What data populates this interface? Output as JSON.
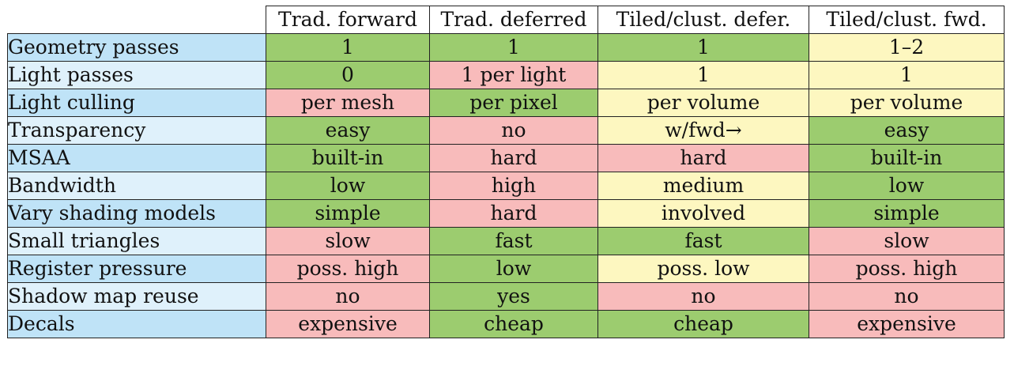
{
  "colors": {
    "good": "#9ccc6f",
    "bad": "#f8bbbb",
    "medium": "#fdf7c0",
    "label_dark": "#bfe3f7",
    "label_light": "#dff1fb"
  },
  "columns": [
    "Trad. forward",
    "Trad. deferred",
    "Tiled/clust. defer.",
    "Tiled/clust. fwd."
  ],
  "rows": [
    {
      "label": "Geometry passes",
      "cells": [
        {
          "text": "1",
          "rating": "good"
        },
        {
          "text": "1",
          "rating": "good"
        },
        {
          "text": "1",
          "rating": "good"
        },
        {
          "text": "1–2",
          "rating": "medium"
        }
      ]
    },
    {
      "label": "Light passes",
      "cells": [
        {
          "text": "0",
          "rating": "good"
        },
        {
          "text": "1 per light",
          "rating": "bad"
        },
        {
          "text": "1",
          "rating": "medium"
        },
        {
          "text": "1",
          "rating": "medium"
        }
      ]
    },
    {
      "label": "Light culling",
      "cells": [
        {
          "text": "per mesh",
          "rating": "bad"
        },
        {
          "text": "per pixel",
          "rating": "good"
        },
        {
          "text": "per volume",
          "rating": "medium"
        },
        {
          "text": "per volume",
          "rating": "medium"
        }
      ]
    },
    {
      "label": "Transparency",
      "cells": [
        {
          "text": "easy",
          "rating": "good"
        },
        {
          "text": "no",
          "rating": "bad"
        },
        {
          "text": "w/fwd→",
          "rating": "medium"
        },
        {
          "text": "easy",
          "rating": "good"
        }
      ]
    },
    {
      "label": "MSAA",
      "cells": [
        {
          "text": "built-in",
          "rating": "good"
        },
        {
          "text": "hard",
          "rating": "bad"
        },
        {
          "text": "hard",
          "rating": "bad"
        },
        {
          "text": "built-in",
          "rating": "good"
        }
      ]
    },
    {
      "label": "Bandwidth",
      "cells": [
        {
          "text": "low",
          "rating": "good"
        },
        {
          "text": "high",
          "rating": "bad"
        },
        {
          "text": "medium",
          "rating": "medium"
        },
        {
          "text": "low",
          "rating": "good"
        }
      ]
    },
    {
      "label": "Vary shading models",
      "cells": [
        {
          "text": "simple",
          "rating": "good"
        },
        {
          "text": "hard",
          "rating": "bad"
        },
        {
          "text": "involved",
          "rating": "medium"
        },
        {
          "text": "simple",
          "rating": "good"
        }
      ]
    },
    {
      "label": "Small triangles",
      "cells": [
        {
          "text": "slow",
          "rating": "bad"
        },
        {
          "text": "fast",
          "rating": "good"
        },
        {
          "text": "fast",
          "rating": "good"
        },
        {
          "text": "slow",
          "rating": "bad"
        }
      ]
    },
    {
      "label": "Register pressure",
      "cells": [
        {
          "text": "poss. high",
          "rating": "bad"
        },
        {
          "text": "low",
          "rating": "good"
        },
        {
          "text": "poss. low",
          "rating": "medium"
        },
        {
          "text": "poss. high",
          "rating": "bad"
        }
      ]
    },
    {
      "label": "Shadow map reuse",
      "cells": [
        {
          "text": "no",
          "rating": "bad"
        },
        {
          "text": "yes",
          "rating": "good"
        },
        {
          "text": "no",
          "rating": "bad"
        },
        {
          "text": "no",
          "rating": "bad"
        }
      ]
    },
    {
      "label": "Decals",
      "cells": [
        {
          "text": "expensive",
          "rating": "bad"
        },
        {
          "text": "cheap",
          "rating": "good"
        },
        {
          "text": "cheap",
          "rating": "good"
        },
        {
          "text": "expensive",
          "rating": "bad"
        }
      ]
    }
  ]
}
